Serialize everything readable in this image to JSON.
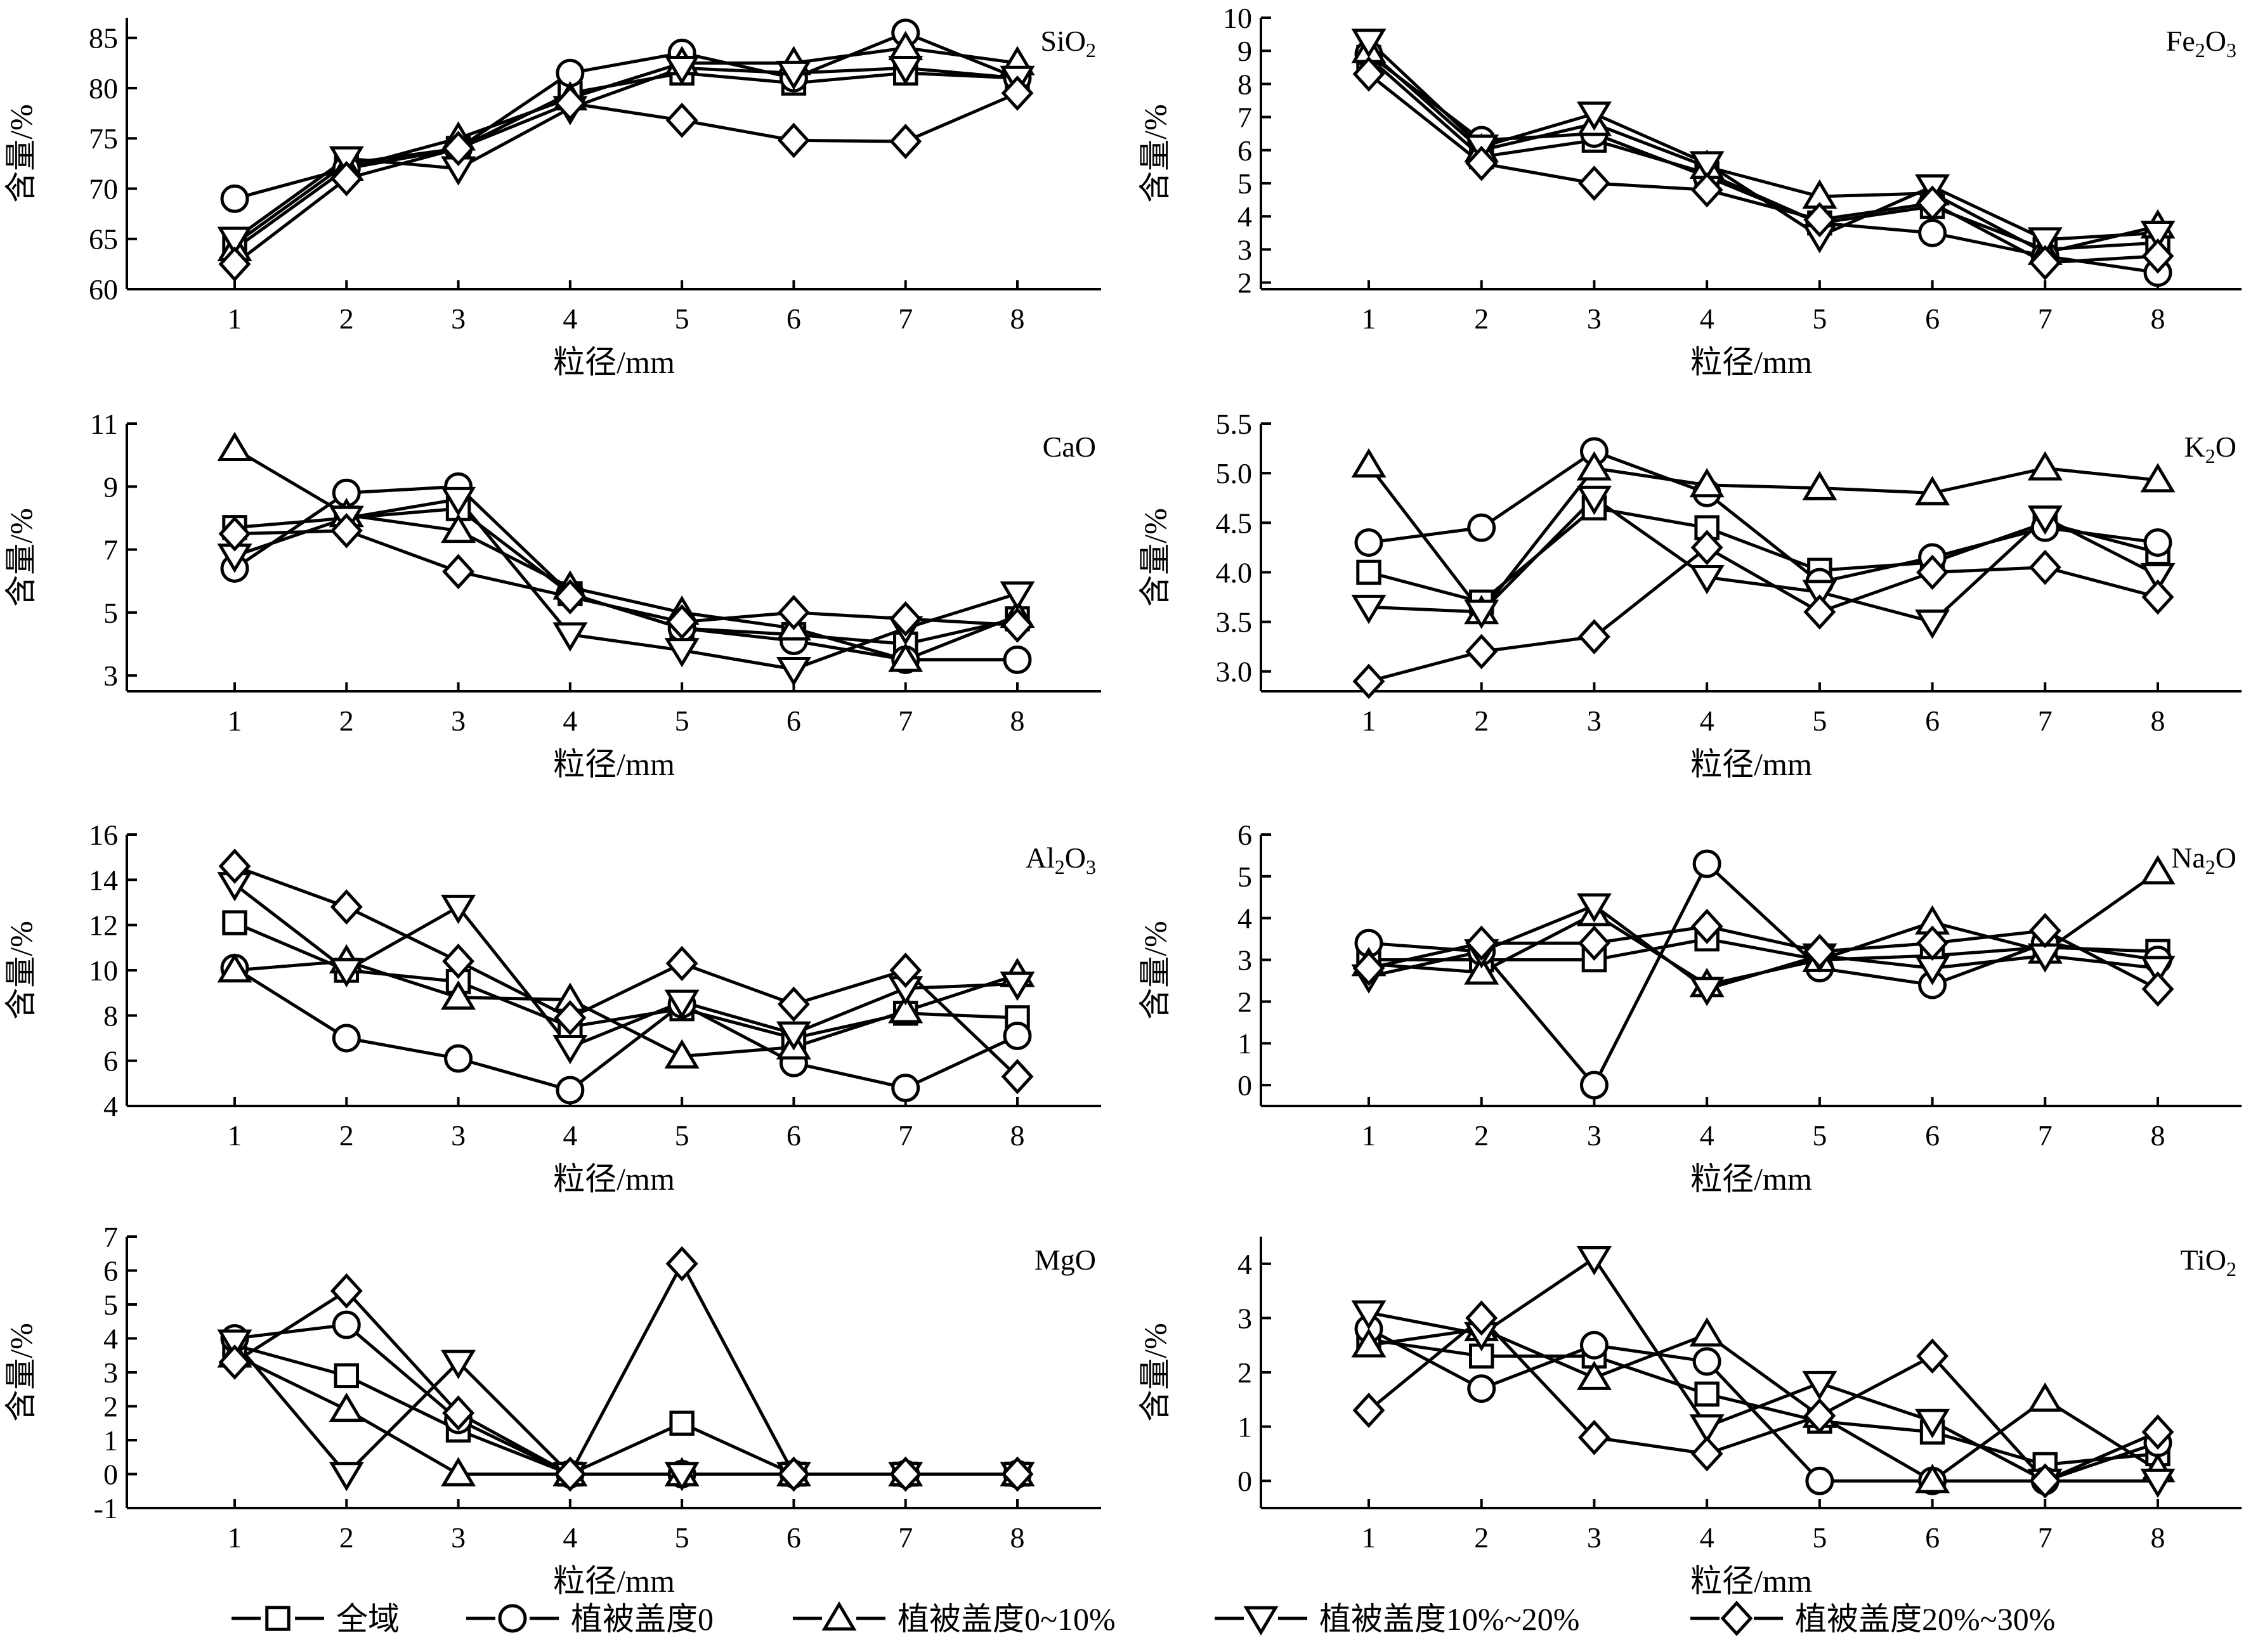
{
  "legend": [
    {
      "marker": "square",
      "label": "全域"
    },
    {
      "marker": "circle",
      "label": "植被盖度0"
    },
    {
      "marker": "triangle-up",
      "label": "植被盖度0~10%"
    },
    {
      "marker": "triangle-down",
      "label": "植被盖度10%~20%"
    },
    {
      "marker": "diamond",
      "label": "植被盖度20%~30%"
    }
  ],
  "chart_data": [
    {
      "type": "line",
      "title": "SiO",
      "title_sub": "2",
      "title_after": "",
      "xlabel": "粒径/mm",
      "ylabel": "含量/%",
      "x": [
        1,
        2,
        3,
        4,
        5,
        6,
        7,
        8
      ],
      "ylim": [
        60,
        87
      ],
      "yticks": [
        60,
        65,
        70,
        75,
        80,
        85
      ],
      "series": [
        {
          "name": "全域",
          "marker": "square",
          "values": [
            64.5,
            72.5,
            74.0,
            79.5,
            81.5,
            80.5,
            81.5,
            81.0
          ]
        },
        {
          "name": "植被盖度0",
          "marker": "circle",
          "values": [
            69.0,
            72.0,
            74.0,
            81.5,
            83.5,
            81.0,
            85.5,
            81.0
          ]
        },
        {
          "name": "植被盖度0~10%",
          "marker": "triangle-up",
          "values": [
            64.0,
            72.0,
            75.0,
            79.0,
            82.5,
            82.5,
            84.0,
            82.5
          ]
        },
        {
          "name": "植被盖度10%~20%",
          "marker": "triangle-down",
          "values": [
            65.0,
            73.0,
            72.0,
            78.0,
            82.0,
            81.5,
            82.0,
            81.0
          ]
        },
        {
          "name": "植被盖度20%~30%",
          "marker": "diamond",
          "values": [
            62.5,
            71.0,
            74.0,
            78.5,
            76.8,
            74.8,
            74.7,
            79.5
          ]
        }
      ]
    },
    {
      "type": "line",
      "title": "Fe",
      "title_sub": "2",
      "title_after": "O3",
      "xlabel": "粒径/mm",
      "ylabel": "含量/%",
      "x": [
        1,
        2,
        3,
        4,
        5,
        6,
        7,
        8
      ],
      "ylim": [
        1.8,
        10
      ],
      "yticks": [
        2,
        3,
        4,
        5,
        6,
        7,
        8,
        9,
        10
      ],
      "series": [
        {
          "name": "全域",
          "marker": "square",
          "values": [
            8.8,
            5.8,
            6.3,
            5.3,
            3.8,
            4.3,
            3.0,
            3.2
          ]
        },
        {
          "name": "植被盖度0",
          "marker": "circle",
          "values": [
            8.9,
            6.3,
            6.5,
            5.2,
            3.8,
            3.5,
            2.8,
            2.3
          ]
        },
        {
          "name": "植被盖度0~10%",
          "marker": "triangle-up",
          "values": [
            9.0,
            6.0,
            6.8,
            5.5,
            4.6,
            4.7,
            2.9,
            3.7
          ]
        },
        {
          "name": "植被盖度10%~20%",
          "marker": "triangle-down",
          "values": [
            9.3,
            6.1,
            7.1,
            5.6,
            3.4,
            4.9,
            3.3,
            3.5
          ]
        },
        {
          "name": "植被盖度20%~30%",
          "marker": "diamond",
          "values": [
            8.3,
            5.6,
            5.0,
            4.8,
            3.9,
            4.4,
            2.6,
            2.8
          ]
        }
      ]
    },
    {
      "type": "line",
      "title": "CaO",
      "title_sub": "",
      "title_after": "",
      "xlabel": "粒径/mm",
      "ylabel": "含量/%",
      "x": [
        1,
        2,
        3,
        4,
        5,
        6,
        7,
        8
      ],
      "ylim": [
        2.5,
        11
      ],
      "yticks": [
        3,
        5,
        7,
        9,
        11
      ],
      "series": [
        {
          "name": "全域",
          "marker": "square",
          "values": [
            7.7,
            8.0,
            8.3,
            5.6,
            4.5,
            4.3,
            4.0,
            4.8
          ]
        },
        {
          "name": "植被盖度0",
          "marker": "circle",
          "values": [
            6.4,
            8.8,
            9.0,
            5.6,
            4.5,
            4.1,
            3.5,
            3.5
          ]
        },
        {
          "name": "植被盖度0~10%",
          "marker": "triangle-up",
          "values": [
            10.2,
            8.1,
            7.6,
            5.8,
            5.0,
            4.5,
            3.5,
            4.9
          ]
        },
        {
          "name": "植被盖度10%~20%",
          "marker": "triangle-down",
          "values": [
            6.8,
            8.0,
            8.6,
            4.3,
            3.8,
            3.2,
            4.5,
            5.6
          ]
        },
        {
          "name": "植被盖度20%~30%",
          "marker": "diamond",
          "values": [
            7.5,
            7.6,
            6.3,
            5.5,
            4.7,
            5.0,
            4.8,
            4.6
          ]
        }
      ]
    },
    {
      "type": "line",
      "title": "K",
      "title_sub": "2",
      "title_after": "O",
      "xlabel": "粒径/mm",
      "ylabel": "含量/%",
      "x": [
        1,
        2,
        3,
        4,
        5,
        6,
        7,
        8
      ],
      "ylim": [
        2.8,
        5.5
      ],
      "yticks": [
        3.0,
        3.5,
        4.0,
        4.5,
        5.0,
        5.5
      ],
      "series": [
        {
          "name": "全域",
          "marker": "square",
          "values": [
            4.0,
            3.7,
            4.65,
            4.45,
            4.02,
            4.1,
            4.5,
            4.2
          ]
        },
        {
          "name": "植被盖度0",
          "marker": "circle",
          "values": [
            4.3,
            4.45,
            5.22,
            4.8,
            3.9,
            4.15,
            4.45,
            4.3
          ]
        },
        {
          "name": "植被盖度0~10%",
          "marker": "triangle-up",
          "values": [
            5.08,
            3.6,
            5.05,
            4.88,
            4.85,
            4.8,
            5.05,
            4.93
          ]
        },
        {
          "name": "植被盖度10%~20%",
          "marker": "triangle-down",
          "values": [
            3.65,
            3.6,
            4.75,
            3.95,
            3.8,
            3.5,
            4.55,
            3.97
          ]
        },
        {
          "name": "植被盖度20%~30%",
          "marker": "diamond",
          "values": [
            2.9,
            3.2,
            3.35,
            4.25,
            3.6,
            4.0,
            4.05,
            3.75
          ]
        }
      ]
    },
    {
      "type": "line",
      "title": "Al",
      "title_sub": "2",
      "title_after": "O3",
      "xlabel": "粒径/mm",
      "ylabel": "含量/%",
      "x": [
        1,
        2,
        3,
        4,
        5,
        6,
        7,
        8
      ],
      "ylim": [
        4,
        16
      ],
      "yticks": [
        4,
        6,
        8,
        10,
        12,
        14,
        16
      ],
      "series": [
        {
          "name": "全域",
          "marker": "square",
          "values": [
            12.1,
            10.0,
            9.5,
            7.5,
            8.3,
            7.0,
            8.1,
            7.9
          ]
        },
        {
          "name": "植被盖度0",
          "marker": "circle",
          "values": [
            10.1,
            7.0,
            6.1,
            4.7,
            8.5,
            5.9,
            4.8,
            7.1
          ]
        },
        {
          "name": "植被盖度0~10%",
          "marker": "triangle-up",
          "values": [
            10.0,
            10.4,
            8.8,
            8.7,
            6.2,
            6.6,
            8.2,
            9.8
          ]
        },
        {
          "name": "植被盖度10%~20%",
          "marker": "triangle-down",
          "values": [
            13.8,
            10.0,
            12.8,
            6.6,
            8.6,
            7.2,
            9.2,
            9.4
          ]
        },
        {
          "name": "植被盖度20%~30%",
          "marker": "diamond",
          "values": [
            14.6,
            12.8,
            10.4,
            7.9,
            10.3,
            8.5,
            10.0,
            5.3
          ]
        }
      ]
    },
    {
      "type": "line",
      "title": "Na",
      "title_sub": "2",
      "title_after": "O",
      "xlabel": "粒径/mm",
      "ylabel": "含量/%",
      "x": [
        1,
        2,
        3,
        4,
        5,
        6,
        7,
        8
      ],
      "ylim": [
        -0.5,
        6
      ],
      "yticks": [
        0,
        1,
        2,
        3,
        4,
        5,
        6
      ],
      "series": [
        {
          "name": "全域",
          "marker": "square",
          "values": [
            3.0,
            3.0,
            3.0,
            3.5,
            3.0,
            3.1,
            3.3,
            3.2
          ]
        },
        {
          "name": "植被盖度0",
          "marker": "circle",
          "values": [
            3.4,
            3.2,
            0.0,
            5.3,
            2.8,
            2.4,
            3.4,
            3.0
          ]
        },
        {
          "name": "植被盖度0~10%",
          "marker": "triangle-up",
          "values": [
            2.9,
            2.7,
            4.1,
            2.4,
            3.0,
            3.9,
            3.2,
            5.1
          ]
        },
        {
          "name": "植被盖度10%~20%",
          "marker": "triangle-down",
          "values": [
            2.6,
            3.2,
            4.3,
            2.3,
            3.1,
            2.8,
            3.1,
            2.8
          ]
        },
        {
          "name": "植被盖度20%~30%",
          "marker": "diamond",
          "values": [
            2.8,
            3.4,
            3.4,
            3.8,
            3.2,
            3.4,
            3.7,
            2.3
          ]
        }
      ]
    },
    {
      "type": "line",
      "title": "MgO",
      "title_sub": "",
      "title_after": "",
      "xlabel": "粒径/mm",
      "ylabel": "含量/%",
      "x": [
        1,
        2,
        3,
        4,
        5,
        6,
        7,
        8
      ],
      "ylim": [
        -1,
        7
      ],
      "yticks": [
        -1,
        0,
        1,
        2,
        3,
        4,
        5,
        6,
        7
      ],
      "series": [
        {
          "name": "全域",
          "marker": "square",
          "values": [
            3.8,
            2.9,
            1.3,
            0.0,
            1.5,
            0.0,
            0.0,
            0.0
          ]
        },
        {
          "name": "植被盖度0",
          "marker": "circle",
          "values": [
            4.0,
            4.4,
            1.6,
            0.0,
            0.0,
            0.0,
            0.0,
            0.0
          ]
        },
        {
          "name": "植被盖度0~10%",
          "marker": "triangle-up",
          "values": [
            3.5,
            1.9,
            0.0,
            0.0,
            0.0,
            0.0,
            0.0,
            0.0
          ]
        },
        {
          "name": "植被盖度10%~20%",
          "marker": "triangle-down",
          "values": [
            3.9,
            0.0,
            3.3,
            0.0,
            0.0,
            0.0,
            0.0,
            0.0
          ]
        },
        {
          "name": "植被盖度20%~30%",
          "marker": "diamond",
          "values": [
            3.3,
            5.4,
            1.8,
            0.0,
            6.2,
            0.0,
            0.0,
            0.0
          ]
        }
      ]
    },
    {
      "type": "line",
      "title": "TiO",
      "title_sub": "2",
      "title_after": "",
      "xlabel": "粒径/mm",
      "ylabel": "含量/%",
      "x": [
        1,
        2,
        3,
        4,
        5,
        6,
        7,
        8
      ],
      "ylim": [
        -0.5,
        4.5
      ],
      "yticks": [
        0,
        1,
        2,
        3,
        4
      ],
      "series": [
        {
          "name": "全域",
          "marker": "square",
          "values": [
            2.6,
            2.3,
            2.3,
            1.6,
            1.1,
            0.9,
            0.3,
            0.5
          ]
        },
        {
          "name": "植被盖度0",
          "marker": "circle",
          "values": [
            2.8,
            1.7,
            2.5,
            2.2,
            0.0,
            0.0,
            0.0,
            0.7
          ]
        },
        {
          "name": "植被盖度0~10%",
          "marker": "triangle-up",
          "values": [
            2.5,
            2.8,
            1.9,
            2.7,
            1.2,
            0.0,
            1.5,
            0.2
          ]
        },
        {
          "name": "植被盖度10%~20%",
          "marker": "triangle-down",
          "values": [
            3.1,
            2.7,
            4.1,
            1.0,
            1.8,
            1.1,
            0.0,
            0.0
          ]
        },
        {
          "name": "植被盖度20%~30%",
          "marker": "diamond",
          "values": [
            1.3,
            3.0,
            0.8,
            0.5,
            1.2,
            2.3,
            0.0,
            0.9
          ]
        }
      ]
    }
  ]
}
